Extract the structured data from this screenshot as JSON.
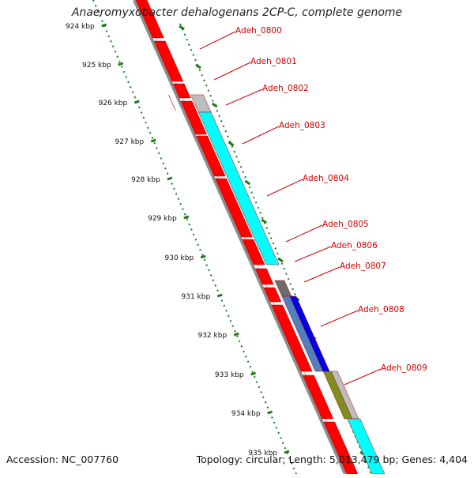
{
  "title": "Anaeromyxobacter dehalogenans 2CP-C, complete genome",
  "footer": {
    "accession": "Accession: NC_007760",
    "summary": "Topology: circular; Length: 5,013,479 bp; Genes: 4,404"
  },
  "colors": {
    "gene_red": "#ff0000",
    "gene_cyan": "#00ffff",
    "gene_lightgray": "#bdbdbd",
    "gene_darkgray": "#6d6d6d",
    "gene_steelblue": "#4f7fbf",
    "gene_blue": "#0000e6",
    "gene_olive": "#7f8f1f",
    "backbone": "#8c8c8c",
    "tick_green": "#1a7a1a",
    "label_red": "#d40000"
  },
  "diagram": {
    "kbp_ticks": [
      "924 kbp",
      "925 kbp",
      "926 kbp",
      "927 kbp",
      "928 kbp",
      "929 kbp",
      "930 kbp",
      "931 kbp",
      "932 kbp",
      "933 kbp",
      "934 kbp",
      "935 kbp"
    ],
    "gene_labels": [
      "Adeh_0800",
      "Adeh_0801",
      "Adeh_0802",
      "Adeh_0803",
      "Adeh_0804",
      "Adeh_0805",
      "Adeh_0806",
      "Adeh_0807",
      "Adeh_0808",
      "Adeh_0809"
    ]
  }
}
